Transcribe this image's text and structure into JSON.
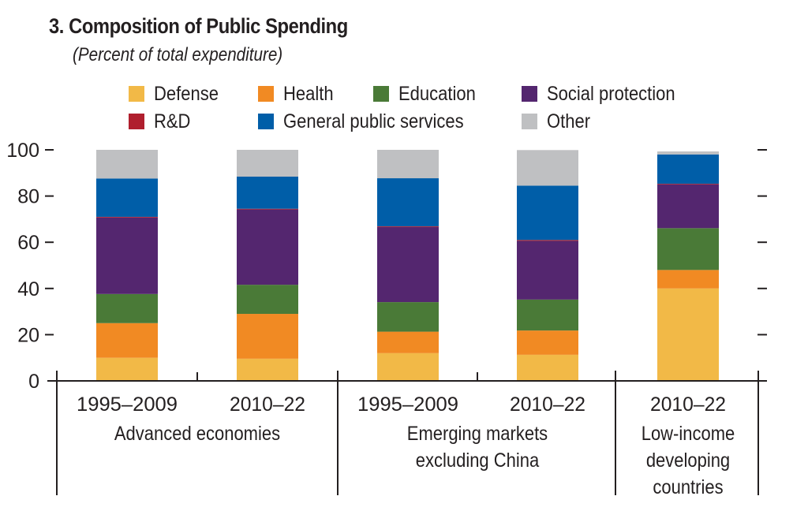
{
  "chart_data": {
    "type": "bar",
    "stacked": true,
    "title": "3. Composition of Public Spending",
    "subtitle": "(Percent of total expenditure)",
    "xlabel": "",
    "ylabel": "",
    "ylim": [
      0,
      100
    ],
    "yticks": [
      0,
      20,
      40,
      60,
      80,
      100
    ],
    "grid": false,
    "legend_position": "top",
    "categories": [
      "1995–2009",
      "2010–22",
      "1995–2009",
      "2010–22",
      "2010–22"
    ],
    "groups": [
      {
        "label": [
          "Advanced economies"
        ],
        "categories": [
          0,
          1
        ]
      },
      {
        "label": [
          "Emerging markets",
          "excluding China"
        ],
        "categories": [
          2,
          3
        ]
      },
      {
        "label": [
          "Low-income",
          "developing",
          "countries"
        ],
        "categories": [
          4
        ]
      }
    ],
    "series": [
      {
        "name": "Defense",
        "color": "#f2b947",
        "values": [
          10,
          9.6,
          12,
          11.3,
          40
        ]
      },
      {
        "name": "Health",
        "color": "#f18a23",
        "values": [
          15,
          19.4,
          9.3,
          10.5,
          8
        ]
      },
      {
        "name": "Education",
        "color": "#4a7a37",
        "values": [
          12.6,
          12.6,
          12.8,
          13.4,
          18.1
        ]
      },
      {
        "name": "Social protection",
        "color": "#54266f",
        "values": [
          33.1,
          32.6,
          32.5,
          25.4,
          18.9
        ]
      },
      {
        "name": "R&D",
        "color": "#b01f2e",
        "values": [
          0.3,
          0.3,
          0.3,
          0.4,
          0.3
        ]
      },
      {
        "name": "General public services",
        "color": "#005ea8",
        "values": [
          16.6,
          13.9,
          20.8,
          23.5,
          12.7
        ]
      },
      {
        "name": "Other",
        "color": "#bfc0c2",
        "values": [
          12.4,
          11.6,
          12.3,
          15.4,
          1.3
        ]
      }
    ]
  },
  "legend": {
    "items": [
      {
        "label": "Defense",
        "color": "#f2b947"
      },
      {
        "label": "Health",
        "color": "#f18a23"
      },
      {
        "label": "Education",
        "color": "#4a7a37"
      },
      {
        "label": "Social protection",
        "color": "#54266f"
      },
      {
        "label": "R&D",
        "color": "#b01f2e"
      },
      {
        "label": "General public services",
        "color": "#005ea8"
      },
      {
        "label": "Other",
        "color": "#bfc0c2"
      }
    ]
  }
}
